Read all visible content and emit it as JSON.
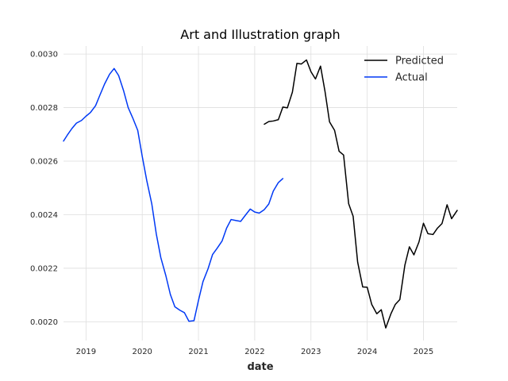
{
  "chart_data": {
    "type": "line",
    "title": "Art and Illustration graph",
    "xlabel": "date",
    "ylabel": "",
    "xlim": [
      2018.6,
      2025.6
    ],
    "ylim": [
      0.00193,
      0.00303
    ],
    "x_ticks": [
      2019,
      2020,
      2021,
      2022,
      2023,
      2024,
      2025
    ],
    "x_tick_labels": [
      "2019",
      "2020",
      "2021",
      "2022",
      "2023",
      "2024",
      "2025"
    ],
    "y_ticks": [
      0.002,
      0.0022,
      0.0024,
      0.0026,
      0.0028,
      0.003
    ],
    "y_tick_labels": [
      "0.0020",
      "0.0022",
      "0.0024",
      "0.0026",
      "0.0028",
      "0.0030"
    ],
    "grid": true,
    "legend_position": "top-right",
    "series": [
      {
        "name": "Predicted",
        "color": "#000000",
        "x": [
          2022.17,
          2022.25,
          2022.33,
          2022.42,
          2022.5,
          2022.58,
          2022.67,
          2022.75,
          2022.83,
          2022.92,
          2023.0,
          2023.08,
          2023.17,
          2023.25,
          2023.33,
          2023.42,
          2023.5,
          2023.58,
          2023.67,
          2023.75,
          2023.83,
          2023.92,
          2024.0,
          2024.08,
          2024.17,
          2024.25,
          2024.33,
          2024.42,
          2024.5,
          2024.58,
          2024.67,
          2024.75,
          2024.83,
          2024.92,
          2025.0,
          2025.08,
          2025.17,
          2025.25,
          2025.33,
          2025.42,
          2025.5,
          2025.6
        ],
        "y": [
          0.002738,
          0.002748,
          0.00275,
          0.002755,
          0.002802,
          0.002799,
          0.002858,
          0.002965,
          0.002963,
          0.002978,
          0.002934,
          0.002907,
          0.002955,
          0.00286,
          0.002747,
          0.002715,
          0.002637,
          0.002623,
          0.002441,
          0.002394,
          0.002223,
          0.00213,
          0.002129,
          0.002065,
          0.00203,
          0.002045,
          0.001977,
          0.002029,
          0.002065,
          0.002083,
          0.002212,
          0.00228,
          0.00225,
          0.002298,
          0.002368,
          0.002329,
          0.002326,
          0.00235,
          0.002367,
          0.002437,
          0.002385,
          0.002416
        ]
      },
      {
        "name": "Actual",
        "color": "#0039f5",
        "x": [
          2018.6,
          2018.67,
          2018.75,
          2018.83,
          2018.92,
          2019.0,
          2019.08,
          2019.17,
          2019.25,
          2019.33,
          2019.42,
          2019.5,
          2019.58,
          2019.67,
          2019.75,
          2019.83,
          2019.92,
          2020.0,
          2020.08,
          2020.17,
          2020.25,
          2020.33,
          2020.42,
          2020.5,
          2020.58,
          2020.67,
          2020.75,
          2020.83,
          2020.92,
          2021.0,
          2021.08,
          2021.17,
          2021.25,
          2021.33,
          2021.42,
          2021.5,
          2021.58,
          2021.67,
          2021.75,
          2021.83,
          2021.92,
          2022.0,
          2022.08,
          2022.17,
          2022.25,
          2022.33,
          2022.42,
          2022.5
        ],
        "y": [
          0.002675,
          0.002698,
          0.002722,
          0.002742,
          0.002752,
          0.002768,
          0.002782,
          0.002807,
          0.002848,
          0.002888,
          0.002925,
          0.002946,
          0.00292,
          0.002862,
          0.0028,
          0.002762,
          0.002715,
          0.002618,
          0.002528,
          0.00244,
          0.002328,
          0.00224,
          0.002172,
          0.002102,
          0.002056,
          0.002043,
          0.002034,
          0.002002,
          0.002004,
          0.00208,
          0.00215,
          0.002198,
          0.002251,
          0.002274,
          0.002302,
          0.00235,
          0.002382,
          0.002378,
          0.002375,
          0.002397,
          0.002421,
          0.00241,
          0.002406,
          0.002419,
          0.00244,
          0.002488,
          0.00252,
          0.002535
        ]
      }
    ]
  }
}
